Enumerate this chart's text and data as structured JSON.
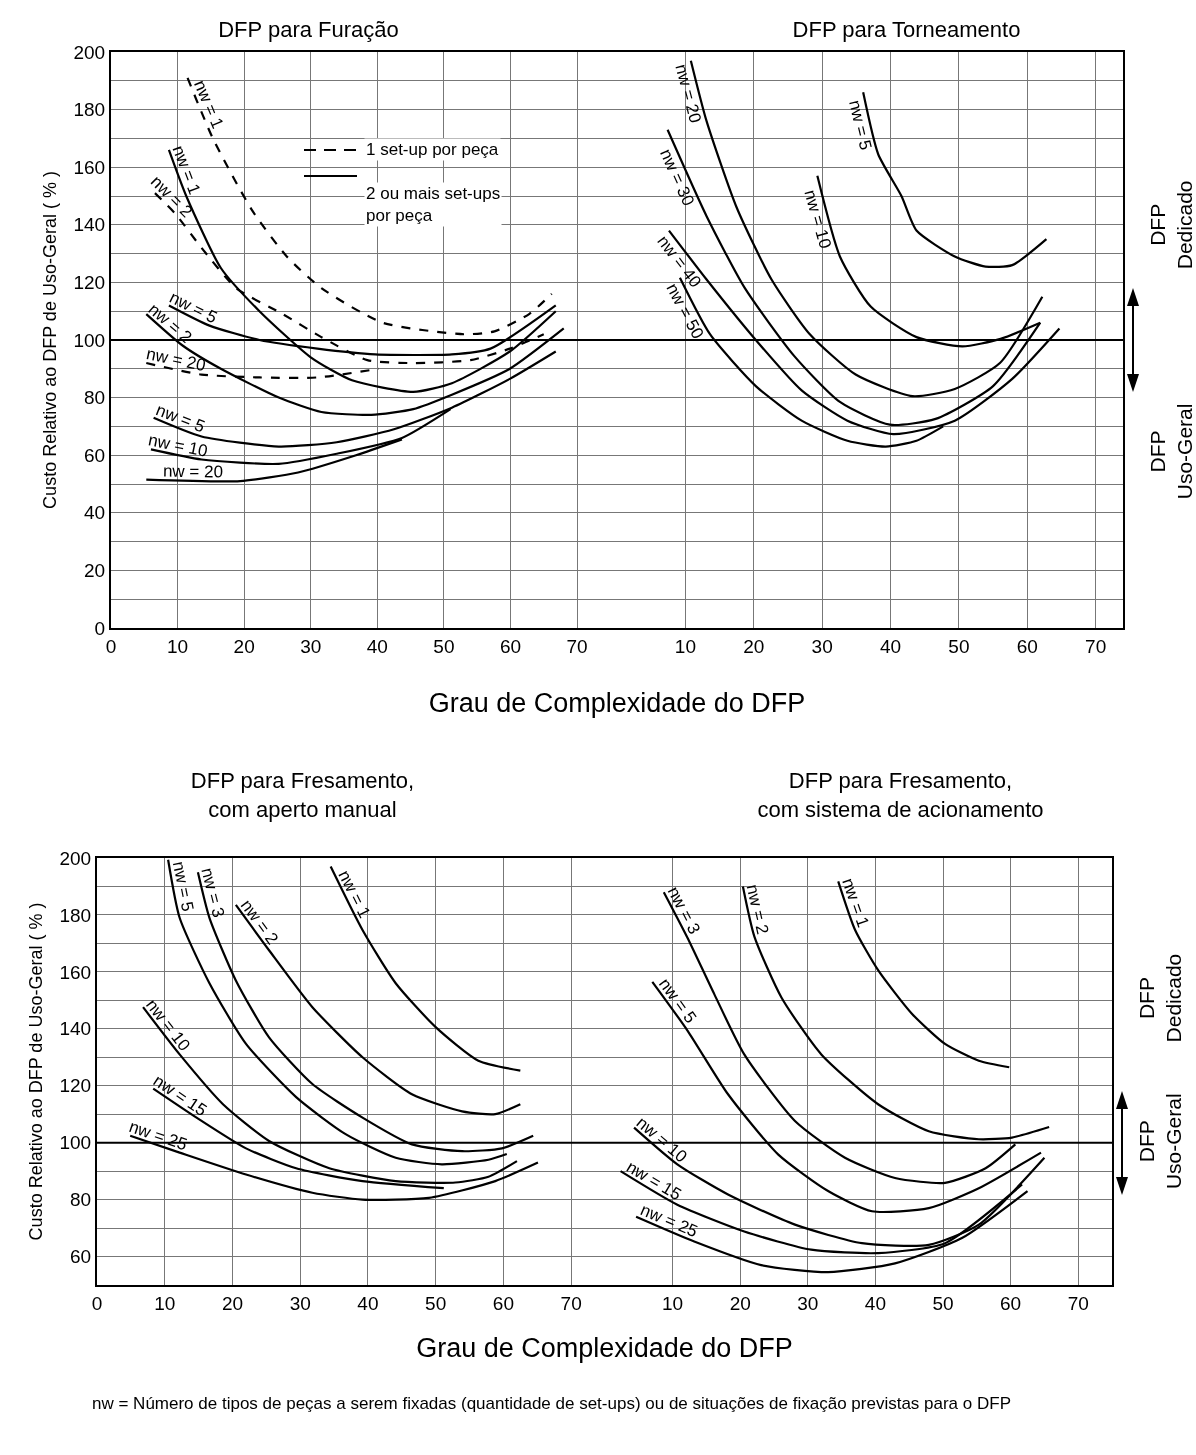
{
  "chart_data": [
    {
      "type": "line",
      "title": "DFP para Furação",
      "xlabel": "Grau de Complexidade do DFP",
      "ylabel": "Custo Relativo ao DFP de Uso-Geral ( % )",
      "xlim": [
        0,
        76
      ],
      "ylim": [
        0,
        200
      ],
      "xticks": [
        0,
        10,
        20,
        30,
        40,
        50,
        60,
        70
      ],
      "yticks": [
        0,
        20,
        40,
        60,
        80,
        100,
        120,
        140,
        160,
        180,
        200
      ],
      "grid": true,
      "legend": false,
      "marker": "none",
      "annotations": [
        "1 set-up por peça",
        "2 ou mais set-ups por peça"
      ],
      "ref_lines": [
        {
          "axis": "y",
          "value": 100,
          "color": "#000000"
        }
      ],
      "series": [
        {
          "name": "nw = 1",
          "color": "#000000",
          "line_style": "dashed",
          "x": [
            11.5,
            15.3,
            21.2,
            26.4,
            31.6,
            40.8,
            53,
            57.6,
            62.8,
            66.2
          ],
          "values": [
            191,
            170,
            145,
            129,
            118,
            106,
            102,
            103,
            109,
            116
          ]
        },
        {
          "name": "nw = 1",
          "color": "#000000",
          "line_style": "solid",
          "x": [
            8.7,
            11.3,
            16.5,
            22.3,
            30,
            36.2,
            45.4,
            51.2,
            59.9,
            66.8
          ],
          "values": [
            166,
            150,
            125,
            110,
            94,
            86,
            82,
            85,
            96,
            110
          ]
        },
        {
          "name": "nw = 2",
          "color": "#000000",
          "line_style": "dashed",
          "x": [
            6.6,
            9.6,
            13.6,
            18.8,
            25.8,
            31.6,
            38.5,
            45.4,
            54,
            59.9,
            65
          ],
          "values": [
            151,
            144,
            132,
            118,
            109,
            101,
            93,
            92,
            93,
            97,
            102
          ]
        },
        {
          "name": "nw = 5",
          "color": "#000000",
          "line_style": "solid",
          "x": [
            8.7,
            14.8,
            22.3,
            31,
            39.7,
            51.2,
            57,
            66.8
          ],
          "values": [
            112,
            105,
            100,
            97,
            95,
            95,
            97,
            112
          ]
        },
        {
          "name": "nw = 2",
          "color": "#000000",
          "line_style": "solid",
          "x": [
            5.3,
            10.8,
            16.5,
            25.2,
            31.6,
            39.1,
            45.4,
            51.2,
            59.9,
            68
          ],
          "values": [
            109,
            98,
            90,
            80,
            75,
            74,
            76,
            81,
            90,
            104
          ]
        },
        {
          "name": "nw = 20",
          "color": "#000000",
          "line_style": "dashed",
          "x": [
            5.3,
            13.6,
            22.3,
            31,
            40.2
          ],
          "values": [
            92,
            88,
            87,
            87,
            90
          ]
        },
        {
          "name": "nw = 5",
          "color": "#000000",
          "line_style": "solid",
          "x": [
            6.4,
            13.6,
            25.2,
            33.9,
            42.5,
            51.2,
            59.9,
            66.8
          ],
          "values": [
            73,
            66.5,
            63,
            64.5,
            69,
            76.5,
            86.5,
            96
          ]
        },
        {
          "name": "nw = 10",
          "color": "#000000",
          "line_style": "solid",
          "x": [
            6,
            13.6,
            25.2,
            33.9,
            43.7,
            51
          ],
          "values": [
            62,
            58.5,
            57,
            60.5,
            66,
            76
          ]
        },
        {
          "name": "nw = 20",
          "color": "#000000",
          "line_style": "solid",
          "x": [
            5.3,
            19.4,
            28.1,
            36.8,
            43.7
          ],
          "values": [
            51.5,
            51,
            54,
            60,
            65.5
          ]
        }
      ]
    },
    {
      "type": "line",
      "title": "DFP para Torneamento",
      "xlim": [
        0,
        74
      ],
      "ylim": [
        0,
        200
      ],
      "xticks": [
        10,
        20,
        30,
        40,
        50,
        60,
        70
      ],
      "yticks": [
        0,
        20,
        40,
        60,
        80,
        100,
        120,
        140,
        160,
        180,
        200
      ],
      "tick_labels": "x",
      "grid": true,
      "legend": false,
      "marker": "none",
      "annotations": [
        "DFP Dedicado",
        "DFP Uso-Geral"
      ],
      "ref_lines": [
        {
          "axis": "y",
          "value": 100,
          "color": "#000000"
        }
      ],
      "series": [
        {
          "name": "nw = 30",
          "color": "#000000",
          "line_style": "solid",
          "x": [
            7.4,
            13.1,
            18.7,
            25.9,
            32.6,
            39.9,
            46.6,
            55,
            61.9
          ],
          "values": [
            173,
            143,
            118,
            94.5,
            78.5,
            70.6,
            72.6,
            84,
            106
          ]
        },
        {
          "name": "nw = 20",
          "color": "#000000",
          "line_style": "solid",
          "x": [
            10.8,
            13.1,
            17.5,
            22.6,
            28.2,
            34.9,
            43.2,
            49.4,
            56,
            62.2
          ],
          "values": [
            197,
            176,
            146,
            121,
            102,
            88,
            80.5,
            83,
            92,
            115
          ]
        },
        {
          "name": "nw = 40",
          "color": "#000000",
          "line_style": "solid",
          "x": [
            7.6,
            13.1,
            20.3,
            27,
            33.7,
            40.4,
            49.4,
            57.8,
            64.7
          ],
          "values": [
            138,
            121,
            100,
            82.5,
            72,
            67.3,
            72,
            86.5,
            104
          ]
        },
        {
          "name": "nw = 50",
          "color": "#000000",
          "line_style": "solid",
          "x": [
            9.2,
            13.6,
            20.3,
            27,
            33.7,
            39.3,
            43.8,
            47.7
          ],
          "values": [
            121.6,
            102,
            84,
            72,
            65,
            63,
            65,
            70
          ]
        },
        {
          "name": "nw = 10",
          "color": "#000000",
          "line_style": "solid",
          "x": [
            29.3,
            32.6,
            37.1,
            43.8,
            50.5,
            56.1,
            61.9
          ],
          "values": [
            157,
            129,
            111.6,
            101,
            97.8,
            100.4,
            106
          ]
        },
        {
          "name": "nw = 5",
          "color": "#000000",
          "line_style": "solid",
          "x": [
            36,
            38.2,
            41.6,
            43.8,
            49.4,
            53.9,
            57.8,
            62.8
          ],
          "values": [
            186,
            164.5,
            150,
            138,
            129,
            125.5,
            126,
            135
          ]
        }
      ]
    },
    {
      "type": "line",
      "title": "DFP para Fresamento, com aperto manual",
      "xlabel": "Grau de Complexidade do DFP",
      "ylabel": "Custo Relativo ao DFP de Uso-Geral ( % )",
      "xlim": [
        0,
        75
      ],
      "ylim": [
        50,
        200
      ],
      "xticks": [
        0,
        10,
        20,
        30,
        40,
        50,
        60,
        70
      ],
      "yticks": [
        60,
        80,
        100,
        120,
        140,
        160,
        180,
        200
      ],
      "grid": true,
      "legend": false,
      "marker": "none",
      "annotations": [
        "nw = Número de tipos de peças a serem fixadas (quantidade de set-ups) ou de situações de fixação previstas para o DFP"
      ],
      "ref_lines": [
        {
          "axis": "y",
          "value": 100,
          "color": "#000000"
        }
      ],
      "series": [
        {
          "name": "nw = 1",
          "color": "#000000",
          "line_style": "solid",
          "x": [
            34.5,
            39.2,
            44.1,
            50,
            56.3,
            62.5
          ],
          "values": [
            197,
            174.7,
            156,
            140.6,
            128.8,
            125.3
          ]
        },
        {
          "name": "nw = 2",
          "color": "#000000",
          "line_style": "solid",
          "x": [
            20.5,
            25.4,
            31.8,
            39.2,
            46.5,
            53.9,
            58.8,
            62.5
          ],
          "values": [
            183.5,
            167.6,
            147.6,
            130,
            117,
            111,
            110,
            113.5
          ]
        },
        {
          "name": "nw = 3",
          "color": "#000000",
          "line_style": "solid",
          "x": [
            14.9,
            16.6,
            20.5,
            25.4,
            31.8,
            39.2,
            46.5,
            53.9,
            59.8,
            64.4
          ],
          "values": [
            195,
            179,
            157,
            137,
            120.6,
            108.8,
            99.4,
            97,
            98,
            102.4
          ]
        },
        {
          "name": "nw = 5",
          "color": "#000000",
          "line_style": "solid",
          "x": [
            10.5,
            12.2,
            16.6,
            22,
            29.4,
            36.7,
            44.1,
            50.9,
            57.8,
            60.5
          ],
          "values": [
            199.4,
            179,
            156,
            134.7,
            116,
            103,
            94.7,
            92.4,
            94,
            96
          ]
        },
        {
          "name": "nw = 10",
          "color": "#000000",
          "line_style": "solid",
          "x": [
            6.8,
            12.2,
            18.6,
            25.4,
            34.3,
            44.1,
            52.9,
            57.8,
            62
          ],
          "values": [
            147.6,
            131,
            113.5,
            100.6,
            91,
            86.5,
            86,
            88,
            93.5
          ]
        },
        {
          "name": "nw = 15",
          "color": "#000000",
          "line_style": "solid",
          "x": [
            8.3,
            14.7,
            22,
            29.4,
            39.2,
            51.2
          ],
          "values": [
            119,
            108.8,
            98,
            91,
            86.5,
            84
          ]
        },
        {
          "name": "nw = 25",
          "color": "#000000",
          "line_style": "solid",
          "x": [
            4.9,
            12.2,
            22,
            31.8,
            39.2,
            49,
            58.8,
            65.1
          ],
          "values": [
            102.4,
            96.5,
            88.8,
            82.4,
            80,
            80.6,
            86.5,
            93
          ]
        }
      ]
    },
    {
      "type": "line",
      "title": "DFP para Fresamento, com sistema de acionamento",
      "xlim": [
        0,
        75
      ],
      "ylim": [
        50,
        200
      ],
      "xticks": [
        10,
        20,
        30,
        40,
        50,
        60,
        70
      ],
      "yticks": [
        60,
        80,
        100,
        120,
        140,
        160,
        180,
        200
      ],
      "tick_labels": "x",
      "grid": true,
      "legend": false,
      "marker": "none",
      "annotations": [
        "DFP Dedicado",
        "DFP Uso-Geral"
      ],
      "ref_lines": [
        {
          "axis": "y",
          "value": 100,
          "color": "#000000"
        }
      ],
      "series": [
        {
          "name": "nw = 1",
          "color": "#000000",
          "line_style": "solid",
          "x": [
            34.5,
            37,
            40.4,
            45.4,
            50.3,
            55.3,
            59.8
          ],
          "values": [
            191.8,
            174.7,
            160.6,
            145.3,
            134.7,
            128.8,
            126.5
          ]
        },
        {
          "name": "nw = 2",
          "color": "#000000",
          "line_style": "solid",
          "x": [
            20.4,
            22.1,
            26.1,
            32,
            40.4,
            47.9,
            55.3,
            60.2,
            65.7
          ],
          "values": [
            190,
            172.4,
            151,
            131,
            113.5,
            104,
            101.2,
            101.8,
            105.5
          ]
        },
        {
          "name": "nw = 3",
          "color": "#000000",
          "line_style": "solid",
          "x": [
            8.7,
            12.2,
            16.2,
            20.6,
            28.1,
            35.5,
            42.9,
            50.3,
            56.3,
            60.7
          ],
          "values": [
            188,
            172,
            152,
            131,
            107.6,
            94.7,
            87.6,
            85.9,
            91,
            99.4
          ]
        },
        {
          "name": "nw = 5",
          "color": "#000000",
          "line_style": "solid",
          "x": [
            7,
            12.2,
            18.2,
            25.6,
            33,
            39.5,
            47.9,
            55.3,
            64.5
          ],
          "values": [
            156.5,
            139.4,
            117,
            95.9,
            83,
            75.9,
            77,
            84,
            96.5
          ]
        },
        {
          "name": "nw = 10",
          "color": "#000000",
          "line_style": "solid",
          "x": [
            4.3,
            10.7,
            18.2,
            28.1,
            38,
            47.9,
            55.3,
            65
          ],
          "values": [
            105.3,
            92.4,
            81.8,
            71.2,
            64.7,
            64.1,
            71.2,
            94.7
          ]
        },
        {
          "name": "nw = 15",
          "color": "#000000",
          "line_style": "solid",
          "x": [
            2.3,
            10.7,
            20.6,
            30.5,
            40.4,
            50.3,
            61.7
          ],
          "values": [
            90,
            78.2,
            68.8,
            62.4,
            61.2,
            64.7,
            85.3
          ]
        },
        {
          "name": "nw = 25",
          "color": "#000000",
          "line_style": "solid",
          "x": [
            4.6,
            13.2,
            23.1,
            33,
            42.9,
            52.8,
            62.5
          ],
          "values": [
            74,
            65.3,
            57,
            54.5,
            57.6,
            66.5,
            83
          ]
        }
      ]
    }
  ]
}
